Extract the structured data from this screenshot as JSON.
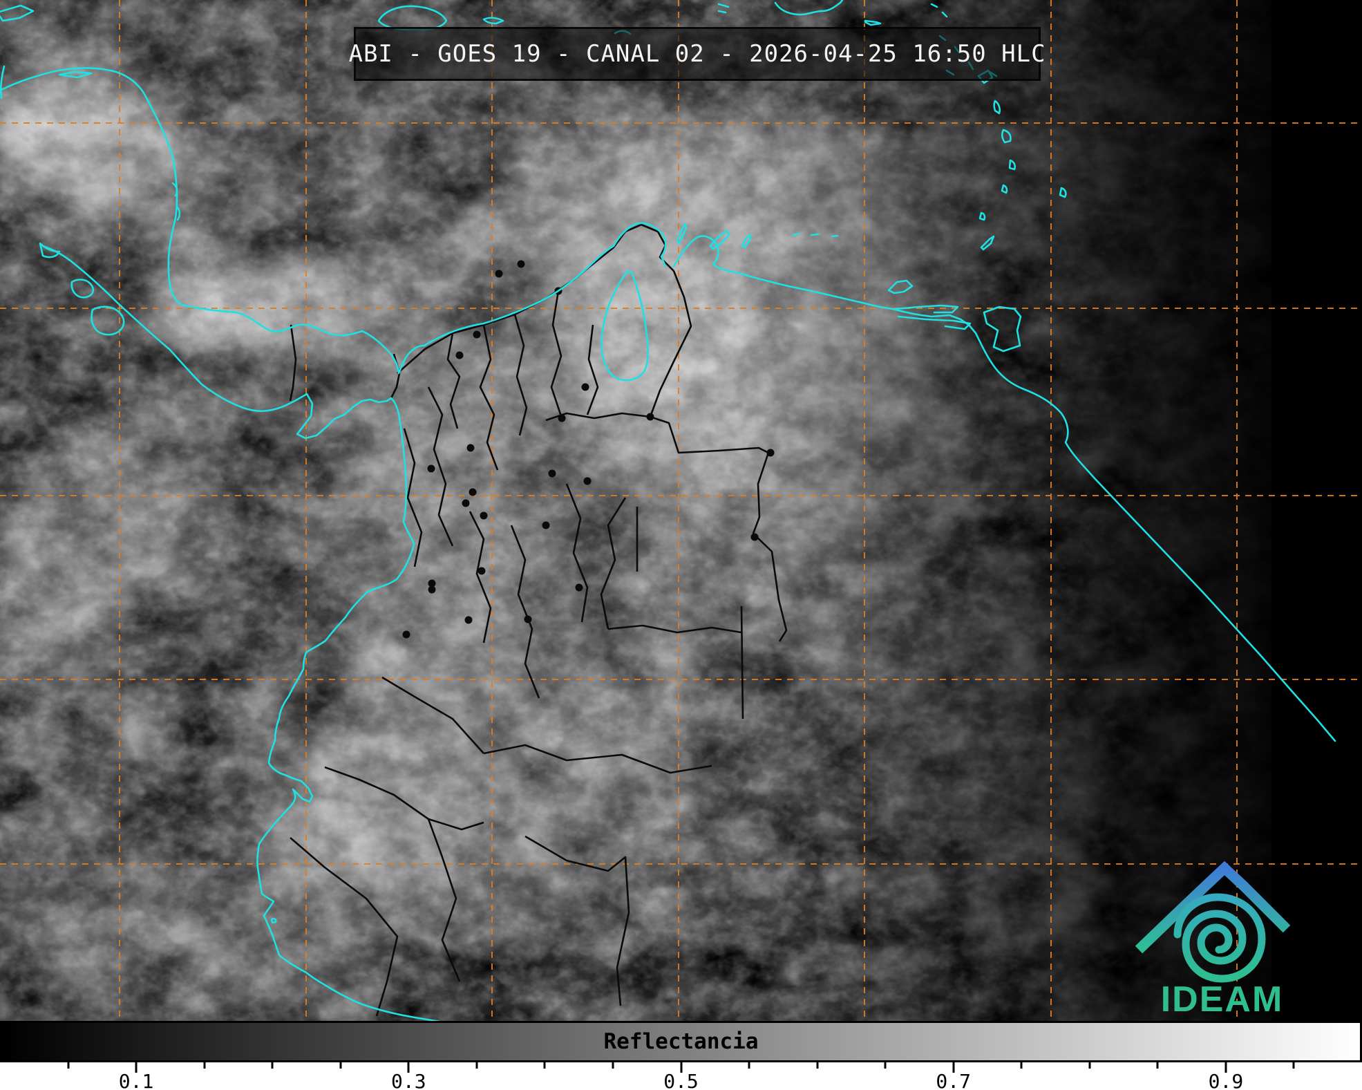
{
  "product": {
    "title": "ABI - GOES 19 - CANAL 02 - 2026-04-25 16:50 HLC",
    "instrument": "ABI",
    "satellite": "GOES 19",
    "channel": "CANAL 02",
    "datetime": "2026-04-25 16:50",
    "time_zone": "HLC"
  },
  "colorbar": {
    "label": "Reflectancia",
    "min": 0,
    "max": 1,
    "minor_tick_step": 0.05,
    "major_tick_values": [
      0.1,
      0.3,
      0.5,
      0.7,
      0.9
    ],
    "major_tick_labels": [
      "0.1",
      "0.3",
      "0.5",
      "0.7",
      "0.9"
    ],
    "gradient_start": "#000000",
    "gradient_end": "#ffffff"
  },
  "logo": {
    "text": "IDEAM",
    "green": "#2ebe90",
    "teal": "#35abc0",
    "blue": "#3f7cd8"
  },
  "map": {
    "coastline_color": "#1fe0e3",
    "graticule_color": "#df7d22",
    "admin_border_color": "#0a0a0a",
    "city_dot_color": "#0a0a0a"
  }
}
